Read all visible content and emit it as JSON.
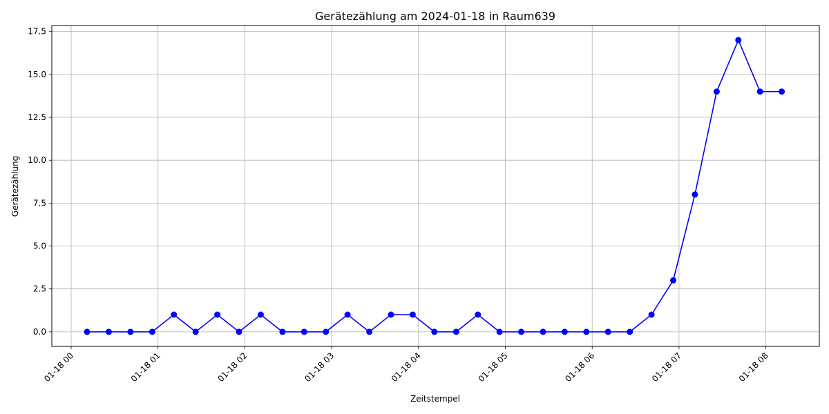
{
  "chart_data": {
    "type": "line",
    "title": "Gerätezählung am 2024-01-18 in Raum639",
    "xlabel": "Zeitstempel",
    "ylabel": "Gerätezählung",
    "x_unit": "time of day on 2024-01-18 (HH:MM)",
    "x_range": [
      "00:00",
      "08:36"
    ],
    "ylim": [
      -0.85,
      17.85
    ],
    "grid": true,
    "line_color": "#0000ff",
    "x_ticks": [
      "01-18 00",
      "01-18 01",
      "01-18 02",
      "01-18 03",
      "01-18 04",
      "01-18 05",
      "01-18 06",
      "01-18 07",
      "01-18 08"
    ],
    "y_ticks": [
      "0.0",
      "2.5",
      "5.0",
      "7.5",
      "10.0",
      "12.5",
      "15.0",
      "17.5"
    ],
    "series": [
      {
        "x": [
          "00:11",
          "00:26",
          "00:41",
          "00:56",
          "01:11",
          "01:26",
          "01:41",
          "01:56",
          "02:11",
          "02:26",
          "02:41",
          "02:56",
          "03:11",
          "03:26",
          "03:41",
          "03:56",
          "04:11",
          "04:26",
          "04:41",
          "04:56",
          "05:11",
          "05:26",
          "05:41",
          "05:56",
          "06:11",
          "06:26",
          "06:41",
          "06:56",
          "07:11",
          "07:26",
          "07:41",
          "07:56",
          "08:11"
        ],
        "values": [
          0,
          0,
          0,
          0,
          1,
          0,
          1,
          0,
          1,
          0,
          0,
          0,
          1,
          0,
          1,
          1,
          0,
          0,
          1,
          0,
          0,
          0,
          0,
          0,
          0,
          0,
          1,
          3,
          8,
          14,
          17,
          14,
          14
        ]
      }
    ]
  }
}
